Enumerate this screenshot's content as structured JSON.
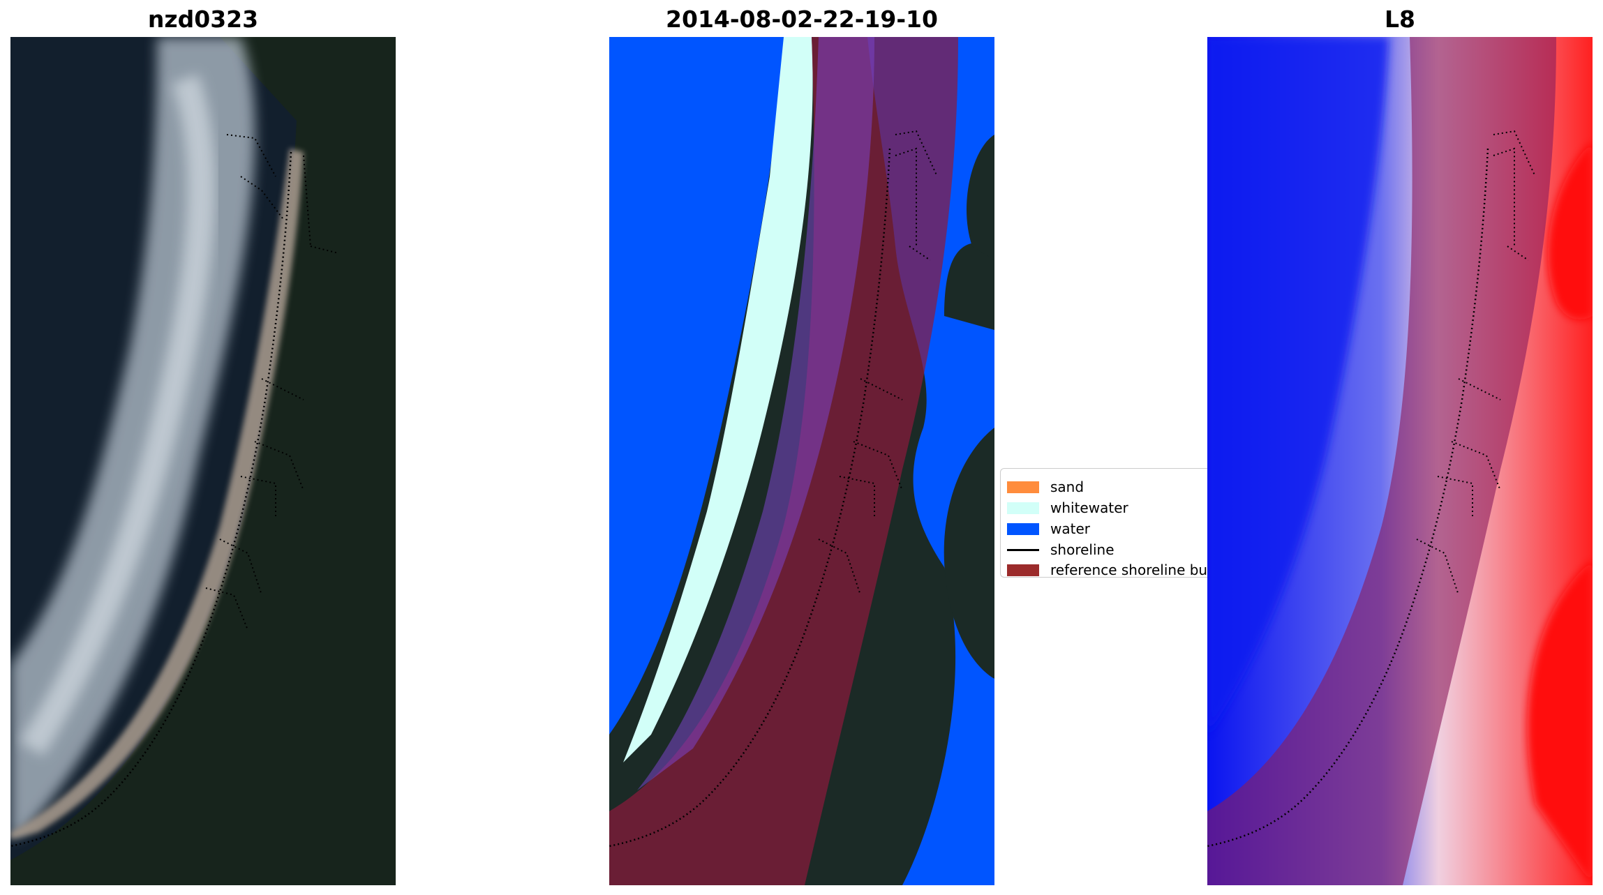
{
  "panels": [
    {
      "title": "nzd0323"
    },
    {
      "title": "2014-08-02-22-19-10"
    },
    {
      "title": "L8"
    }
  ],
  "legend": {
    "items": [
      {
        "label": "sand",
        "color": "#ff8c3c"
      },
      {
        "label": "whitewater",
        "color": "#d2fff8"
      },
      {
        "label": "water",
        "color": "#0055ff"
      },
      {
        "label": "shoreline",
        "color": "#000000"
      },
      {
        "label": "reference shoreline bu",
        "color": "#9b2b2b"
      }
    ]
  },
  "colors": {
    "rgb_background": "#13202e",
    "wave_foam": "#c8d2dc",
    "beach": "#9c9084",
    "reference_buffer": "#8b1a3c",
    "index_water": "#0a14f0",
    "index_land": "#ff0a0a"
  }
}
